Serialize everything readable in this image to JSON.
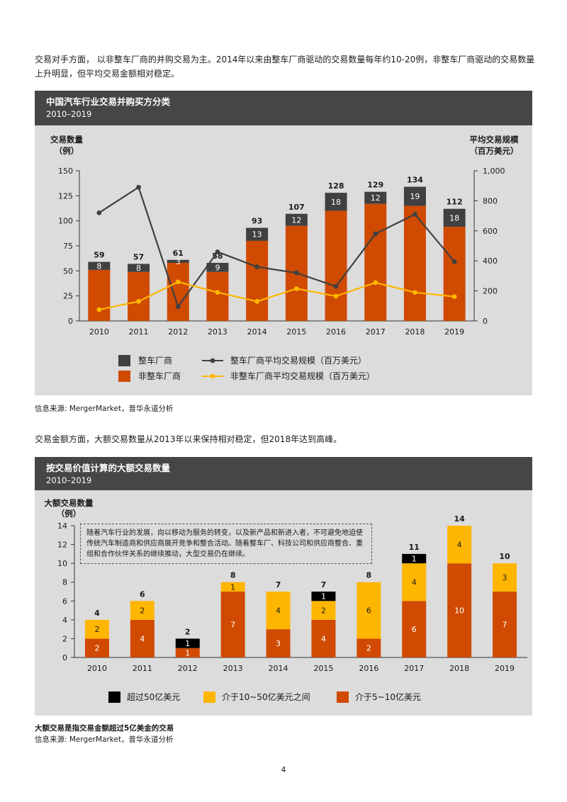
{
  "intro_text": "交易对手方面， 以非整车厂商的并购交易为主。2014年以来由整车厂商驱动的交易数量每年约10-20例，非整车厂商驱动的交易数量上升明显，但平均交易金额相对稳定。",
  "mid_text": "交易金额方面，大额交易数量从2013年以来保持相对稳定，但2018年达到高峰。",
  "source_1": "信息来源: MergerMarket，普华永道分析",
  "note_2": "大额交易是指交易金额超过5亿美金的交易",
  "source_2": "信息来源: MergerMarket，普华永道分析",
  "page_number": "4",
  "colors": {
    "dark": "#404040",
    "orange": "#d04a02",
    "yellow": "#ffb600",
    "black": "#000000",
    "header": "#464646",
    "panel": "#dcdcdc"
  },
  "chart_data": [
    {
      "type": "bar",
      "title": "中国汽车行业交易并购买方分类",
      "subtitle": "2010–2019",
      "ylabel_left": [
        "交易数量",
        "（例）"
      ],
      "ylabel_right": [
        "平均交易规模",
        "（百万美元）"
      ],
      "categories": [
        "2010",
        "2011",
        "2012",
        "2013",
        "2014",
        "2015",
        "2016",
        "2017",
        "2018",
        "2019"
      ],
      "ylim_left": [
        0,
        150
      ],
      "yticks_left": [
        "0",
        "25",
        "50",
        "75",
        "100",
        "125",
        "150"
      ],
      "ylim_right": [
        0,
        1000
      ],
      "yticks_right": [
        "0",
        "200",
        "400",
        "600",
        "800",
        "1,000"
      ],
      "totals": [
        "59",
        "57",
        "61",
        "58",
        "93",
        "107",
        "128",
        "129",
        "134",
        "112"
      ],
      "series": [
        {
          "name": "非整车厂商",
          "kind": "bar",
          "values": [
            51,
            49,
            58,
            49,
            80,
            95,
            110,
            117,
            115,
            94
          ]
        },
        {
          "name": "整车厂商",
          "kind": "bar",
          "values": [
            8,
            8,
            3,
            9,
            13,
            12,
            18,
            12,
            19,
            18
          ]
        },
        {
          "name": "整车厂商平均交易规模（百万美元）",
          "kind": "line",
          "axis": "right",
          "values": [
            720,
            890,
            95,
            460,
            360,
            320,
            230,
            580,
            710,
            395
          ]
        },
        {
          "name": "非整车厂商平均交易规模（百万美元）",
          "kind": "line",
          "axis": "right",
          "values": [
            75,
            130,
            260,
            190,
            130,
            215,
            165,
            255,
            190,
            162
          ]
        }
      ],
      "legend": [
        "整车厂商",
        "整车厂商平均交易规模（百万美元）",
        "非整车厂商",
        "非整车厂商平均交易规模（百万美元）"
      ]
    },
    {
      "type": "bar",
      "title": "按交易价值计算的大额交易数量",
      "subtitle": "2010–2019",
      "ylabel": [
        "大额交易数量",
        "（例）"
      ],
      "categories": [
        "2010",
        "2011",
        "2012",
        "2013",
        "2014",
        "2015",
        "2016",
        "2017",
        "2018",
        "2019"
      ],
      "ylim": [
        0,
        14
      ],
      "yticks": [
        "0",
        "2",
        "4",
        "6",
        "8",
        "10",
        "12",
        "14"
      ],
      "totals": [
        "4",
        "6",
        "2",
        "8",
        "7",
        "7",
        "8",
        "11",
        "14",
        "10"
      ],
      "series": [
        {
          "name": "介于5~10亿美元",
          "values": [
            2,
            4,
            1,
            7,
            3,
            4,
            2,
            6,
            10,
            7
          ]
        },
        {
          "name": "介于10~50亿美元之间",
          "values": [
            2,
            2,
            0,
            1,
            4,
            2,
            6,
            4,
            4,
            3
          ]
        },
        {
          "name": "超过50亿美元",
          "values": [
            0,
            0,
            1,
            0,
            0,
            1,
            0,
            1,
            0,
            0
          ]
        }
      ],
      "legend": [
        "超过50亿美元",
        "介于10~50亿美元之间",
        "介于5~10亿美元"
      ],
      "callout": "随着汽车行业的发展，向以移动为服务的转变，以及新产品和新进入者，不可避免地迫使传统汽车制造商和供应商展开竞争和整合活动。随着整车厂、科技公司和供应商整合、重组和合作伙伴关系的继续推动，大型交易仍在继续。"
    }
  ]
}
